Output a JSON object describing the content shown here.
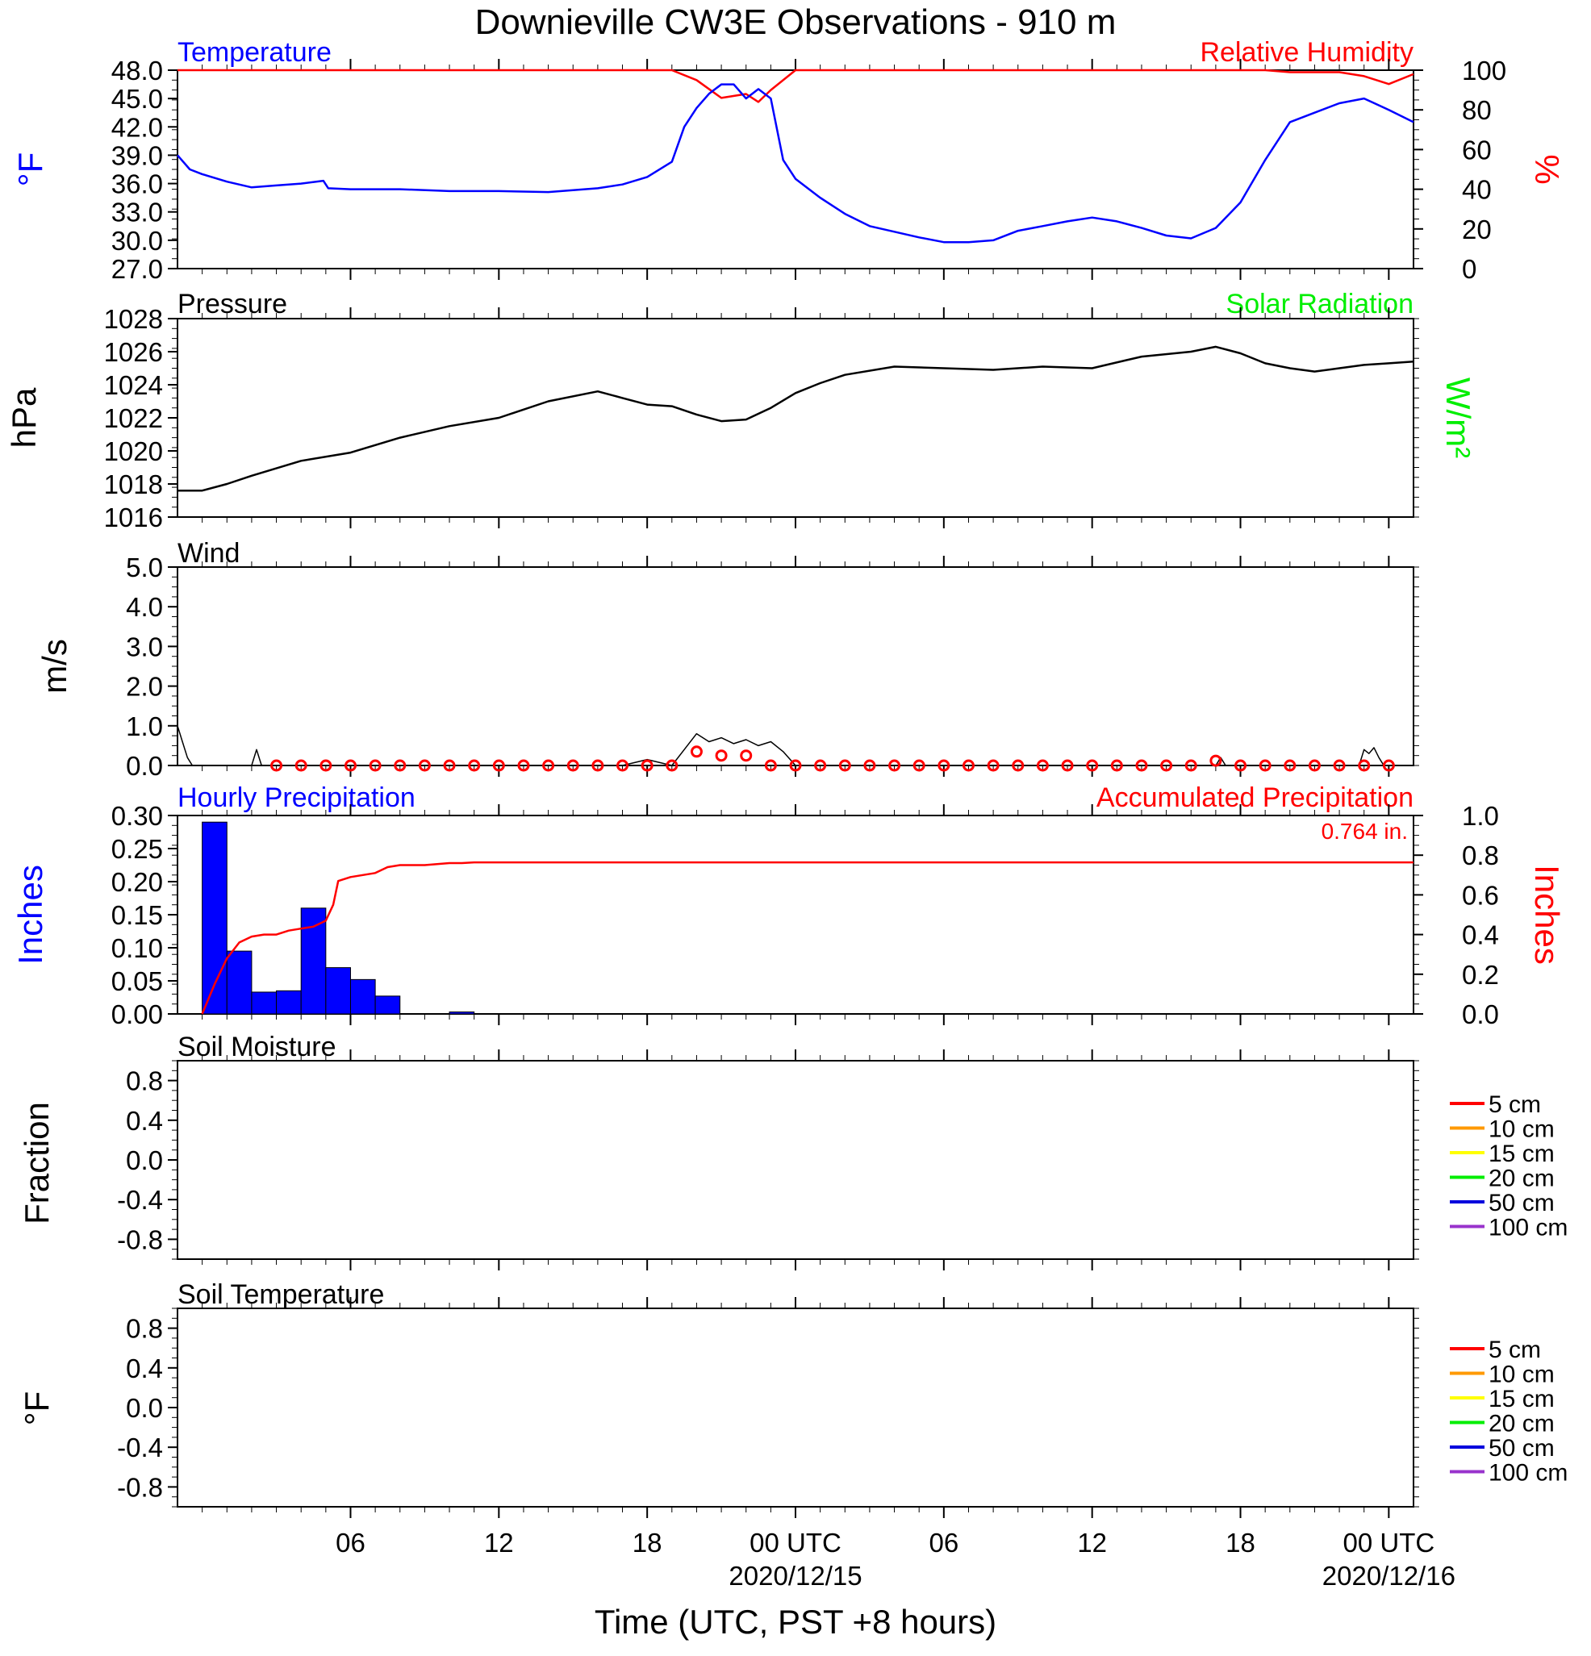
{
  "figure": {
    "title": "Downieville CW3E Observations - 910 m",
    "x_axis_label": "Time (UTC, PST +8 hours)",
    "x_ticks": [
      {
        "hour": 6,
        "label": "06",
        "sublabel": ""
      },
      {
        "hour": 12,
        "label": "12",
        "sublabel": ""
      },
      {
        "hour": 18,
        "label": "18",
        "sublabel": ""
      },
      {
        "hour": 24,
        "label": "00 UTC",
        "sublabel": "2020/12/15"
      },
      {
        "hour": 30,
        "label": "06",
        "sublabel": ""
      },
      {
        "hour": 36,
        "label": "12",
        "sublabel": ""
      },
      {
        "hour": 42,
        "label": "18",
        "sublabel": ""
      },
      {
        "hour": 48,
        "label": "00 UTC",
        "sublabel": "2020/12/16"
      }
    ]
  },
  "colors": {
    "temperature": "#0000ff",
    "humidity": "#ff0000",
    "pressure": "#000000",
    "solar": "#00ee00",
    "hourly_precip": "#0000ff",
    "accum_precip": "#ff0000",
    "wind": "#000000",
    "wind_marker": "#ff0000"
  },
  "legend": [
    {
      "label": "5 cm",
      "color": "#ff0000"
    },
    {
      "label": "10 cm",
      "color": "#ff9900"
    },
    {
      "label": "15 cm",
      "color": "#ffff00"
    },
    {
      "label": "20 cm",
      "color": "#00ee00"
    },
    {
      "label": "50 cm",
      "color": "#0000dd"
    },
    {
      "label": "100 cm",
      "color": "#9933cc"
    }
  ],
  "chart_data": [
    {
      "type": "line",
      "panel": "temperature",
      "title_left": "Temperature",
      "title_right": "Relative Humidity",
      "ylabel": "°F",
      "ylabel_right": "%",
      "ylim": [
        27,
        48
      ],
      "yticks": [
        "27.0",
        "30.0",
        "33.0",
        "36.0",
        "39.0",
        "42.0",
        "45.0",
        "48.0"
      ],
      "ylim_right": [
        0,
        100
      ],
      "yticks_right": [
        "0",
        "20",
        "40",
        "60",
        "80",
        "100"
      ],
      "xlim_hours": [
        -1,
        49
      ],
      "series": [
        {
          "name": "Temperature",
          "axis": "left",
          "x": [
            -1,
            -0.5,
            0,
            1,
            2,
            3,
            4,
            4.9,
            5.1,
            6,
            8,
            10,
            12,
            14,
            16,
            17,
            18,
            19,
            19.5,
            20,
            20.5,
            21,
            21.5,
            22,
            22.5,
            23,
            23.5,
            24,
            25,
            26,
            27,
            28,
            29,
            30,
            31,
            32,
            33,
            34,
            35,
            36,
            37,
            38,
            39,
            40,
            41,
            42,
            43,
            44,
            45,
            46,
            47,
            48,
            49
          ],
          "y": [
            39.0,
            37.5,
            37.0,
            36.2,
            35.6,
            35.8,
            36.0,
            36.3,
            35.5,
            35.4,
            35.4,
            35.2,
            35.2,
            35.1,
            35.5,
            35.9,
            36.7,
            38.3,
            42.0,
            44.0,
            45.5,
            46.5,
            46.5,
            45.0,
            46.0,
            45.0,
            38.5,
            36.5,
            34.5,
            32.8,
            31.5,
            30.9,
            30.3,
            29.8,
            29.8,
            30.0,
            31.0,
            31.5,
            32.0,
            32.4,
            32.0,
            31.3,
            30.5,
            30.2,
            31.3,
            34.0,
            38.5,
            42.5,
            43.5,
            44.5,
            45.0,
            43.8,
            42.5
          ]
        },
        {
          "name": "Relative Humidity",
          "axis": "right",
          "x": [
            -1,
            18,
            19,
            20,
            21,
            22,
            22.5,
            23,
            24,
            25,
            40,
            43,
            44,
            46,
            47,
            48,
            49
          ],
          "y": [
            100,
            100,
            100,
            95,
            86,
            88,
            84,
            90,
            100,
            100,
            100,
            100,
            99,
            99,
            97,
            93,
            98
          ]
        }
      ]
    },
    {
      "type": "line",
      "panel": "pressure",
      "title_left": "Pressure",
      "title_right": "Solar Radiation",
      "ylabel": "hPa",
      "ylabel_right": "W/m²",
      "ylim": [
        1016,
        1028
      ],
      "yticks": [
        "1016",
        "1018",
        "1020",
        "1022",
        "1024",
        "1026",
        "1028"
      ],
      "xlim_hours": [
        -1,
        49
      ],
      "series": [
        {
          "name": "Pressure",
          "axis": "left",
          "x": [
            -1,
            0,
            1,
            2,
            4,
            6,
            8,
            10,
            12,
            14,
            16,
            17,
            18,
            19,
            20,
            21,
            22,
            23,
            24,
            25,
            26,
            28,
            30,
            32,
            34,
            36,
            38,
            40,
            41,
            42,
            43,
            44,
            45,
            46,
            47,
            48,
            49
          ],
          "y": [
            1017.6,
            1017.6,
            1018.0,
            1018.5,
            1019.4,
            1019.9,
            1020.8,
            1021.5,
            1022.0,
            1023.0,
            1023.6,
            1023.2,
            1022.8,
            1022.7,
            1022.2,
            1021.8,
            1021.9,
            1022.6,
            1023.5,
            1024.1,
            1024.6,
            1025.1,
            1025.0,
            1024.9,
            1025.1,
            1025.0,
            1025.7,
            1026.0,
            1026.3,
            1025.9,
            1025.3,
            1025.0,
            1024.8,
            1025.0,
            1025.2,
            1025.3,
            1025.4
          ]
        }
      ]
    },
    {
      "type": "line",
      "panel": "wind",
      "title_left": "Wind",
      "ylabel": "m/s",
      "ylim": [
        0,
        5
      ],
      "yticks": [
        "0.0",
        "1.0",
        "2.0",
        "3.0",
        "4.0",
        "5.0"
      ],
      "xlim_hours": [
        -1,
        49
      ],
      "series": [
        {
          "name": "Wind speed",
          "axis": "left",
          "x": [
            -1,
            -0.8,
            -0.6,
            -0.4,
            0,
            2,
            2.2,
            2.4,
            4,
            17,
            18,
            19,
            19.5,
            20,
            20.5,
            21,
            21.5,
            22,
            22.5,
            23,
            23.5,
            24,
            25,
            41,
            41.2,
            41.4,
            46.8,
            47,
            47.2,
            47.4,
            47.6,
            47.8
          ],
          "y": [
            1.0,
            0.6,
            0.2,
            0.0,
            0.0,
            0.0,
            0.4,
            0.0,
            0.0,
            0.0,
            0.15,
            0.0,
            0.4,
            0.8,
            0.6,
            0.7,
            0.55,
            0.65,
            0.5,
            0.6,
            0.35,
            0.0,
            0.0,
            0.0,
            0.2,
            0.0,
            0.0,
            0.4,
            0.3,
            0.45,
            0.2,
            0.0
          ]
        },
        {
          "name": "Wind gust markers",
          "axis": "left",
          "style": "markers",
          "x": [
            3,
            4,
            5,
            6,
            7,
            8,
            9,
            10,
            11,
            12,
            13,
            14,
            15,
            16,
            17,
            18,
            19,
            20,
            21,
            22,
            23,
            24,
            25,
            26,
            27,
            28,
            29,
            30,
            31,
            32,
            33,
            34,
            35,
            36,
            37,
            38,
            39,
            40,
            41,
            42,
            43,
            44,
            45,
            46,
            47,
            48
          ],
          "y": [
            0,
            0,
            0,
            0,
            0,
            0,
            0,
            0,
            0,
            0,
            0,
            0,
            0,
            0,
            0,
            0,
            0,
            0.35,
            0.25,
            0.25,
            0,
            0,
            0,
            0,
            0,
            0,
            0,
            0,
            0,
            0,
            0,
            0,
            0,
            0,
            0,
            0,
            0,
            0,
            0.12,
            0,
            0,
            0,
            0,
            0,
            0,
            0
          ]
        }
      ]
    },
    {
      "type": "bar",
      "panel": "precipitation",
      "title_left": "Hourly Precipitation",
      "title_right": "Accumulated Precipitation",
      "annotation": "0.764 in.",
      "ylabel": "Inches",
      "ylabel_right": "Inches",
      "ylim": [
        0,
        0.3
      ],
      "yticks": [
        "0.00",
        "0.05",
        "0.10",
        "0.15",
        "0.20",
        "0.25",
        "0.30"
      ],
      "ylim_right": [
        0,
        1.0
      ],
      "yticks_right": [
        "0.0",
        "0.2",
        "0.4",
        "0.6",
        "0.8",
        "1.0"
      ],
      "xlim_hours": [
        -1,
        49
      ],
      "bars": {
        "name": "Hourly Precipitation",
        "x_start": [
          0,
          1,
          2,
          3,
          4,
          5,
          6,
          7,
          8,
          9,
          10,
          11
        ],
        "values": [
          0.29,
          0.095,
          0.033,
          0.035,
          0.16,
          0.07,
          0.052,
          0.027,
          0.0,
          0.0,
          0.003,
          0.0
        ]
      },
      "series": [
        {
          "name": "Accumulated Precipitation",
          "axis": "right",
          "x": [
            0,
            0.5,
            1,
            1.5,
            2,
            2.5,
            3,
            3.5,
            4,
            4.5,
            5,
            5.3,
            5.5,
            6,
            6.5,
            7,
            7.5,
            8,
            9,
            10,
            10.5,
            11,
            20,
            30,
            40,
            49
          ],
          "y": [
            0.0,
            0.15,
            0.28,
            0.36,
            0.39,
            0.4,
            0.4,
            0.42,
            0.43,
            0.44,
            0.47,
            0.55,
            0.67,
            0.69,
            0.7,
            0.71,
            0.74,
            0.75,
            0.75,
            0.76,
            0.76,
            0.764,
            0.764,
            0.764,
            0.764,
            0.764
          ]
        }
      ]
    },
    {
      "type": "line",
      "panel": "soil_moisture",
      "title_left": "Soil Moisture",
      "ylabel": "Fraction",
      "ylim": [
        -1.0,
        1.0
      ],
      "yticks": [
        "-0.8",
        "-0.4",
        "0.0",
        "0.4",
        "0.8"
      ],
      "xlim_hours": [
        -1,
        49
      ],
      "series": []
    },
    {
      "type": "line",
      "panel": "soil_temperature",
      "title_left": "Soil Temperature",
      "ylabel": "°F",
      "ylim": [
        -1.0,
        1.0
      ],
      "yticks": [
        "-0.8",
        "-0.4",
        "0.0",
        "0.4",
        "0.8"
      ],
      "xlim_hours": [
        -1,
        49
      ],
      "series": []
    }
  ]
}
